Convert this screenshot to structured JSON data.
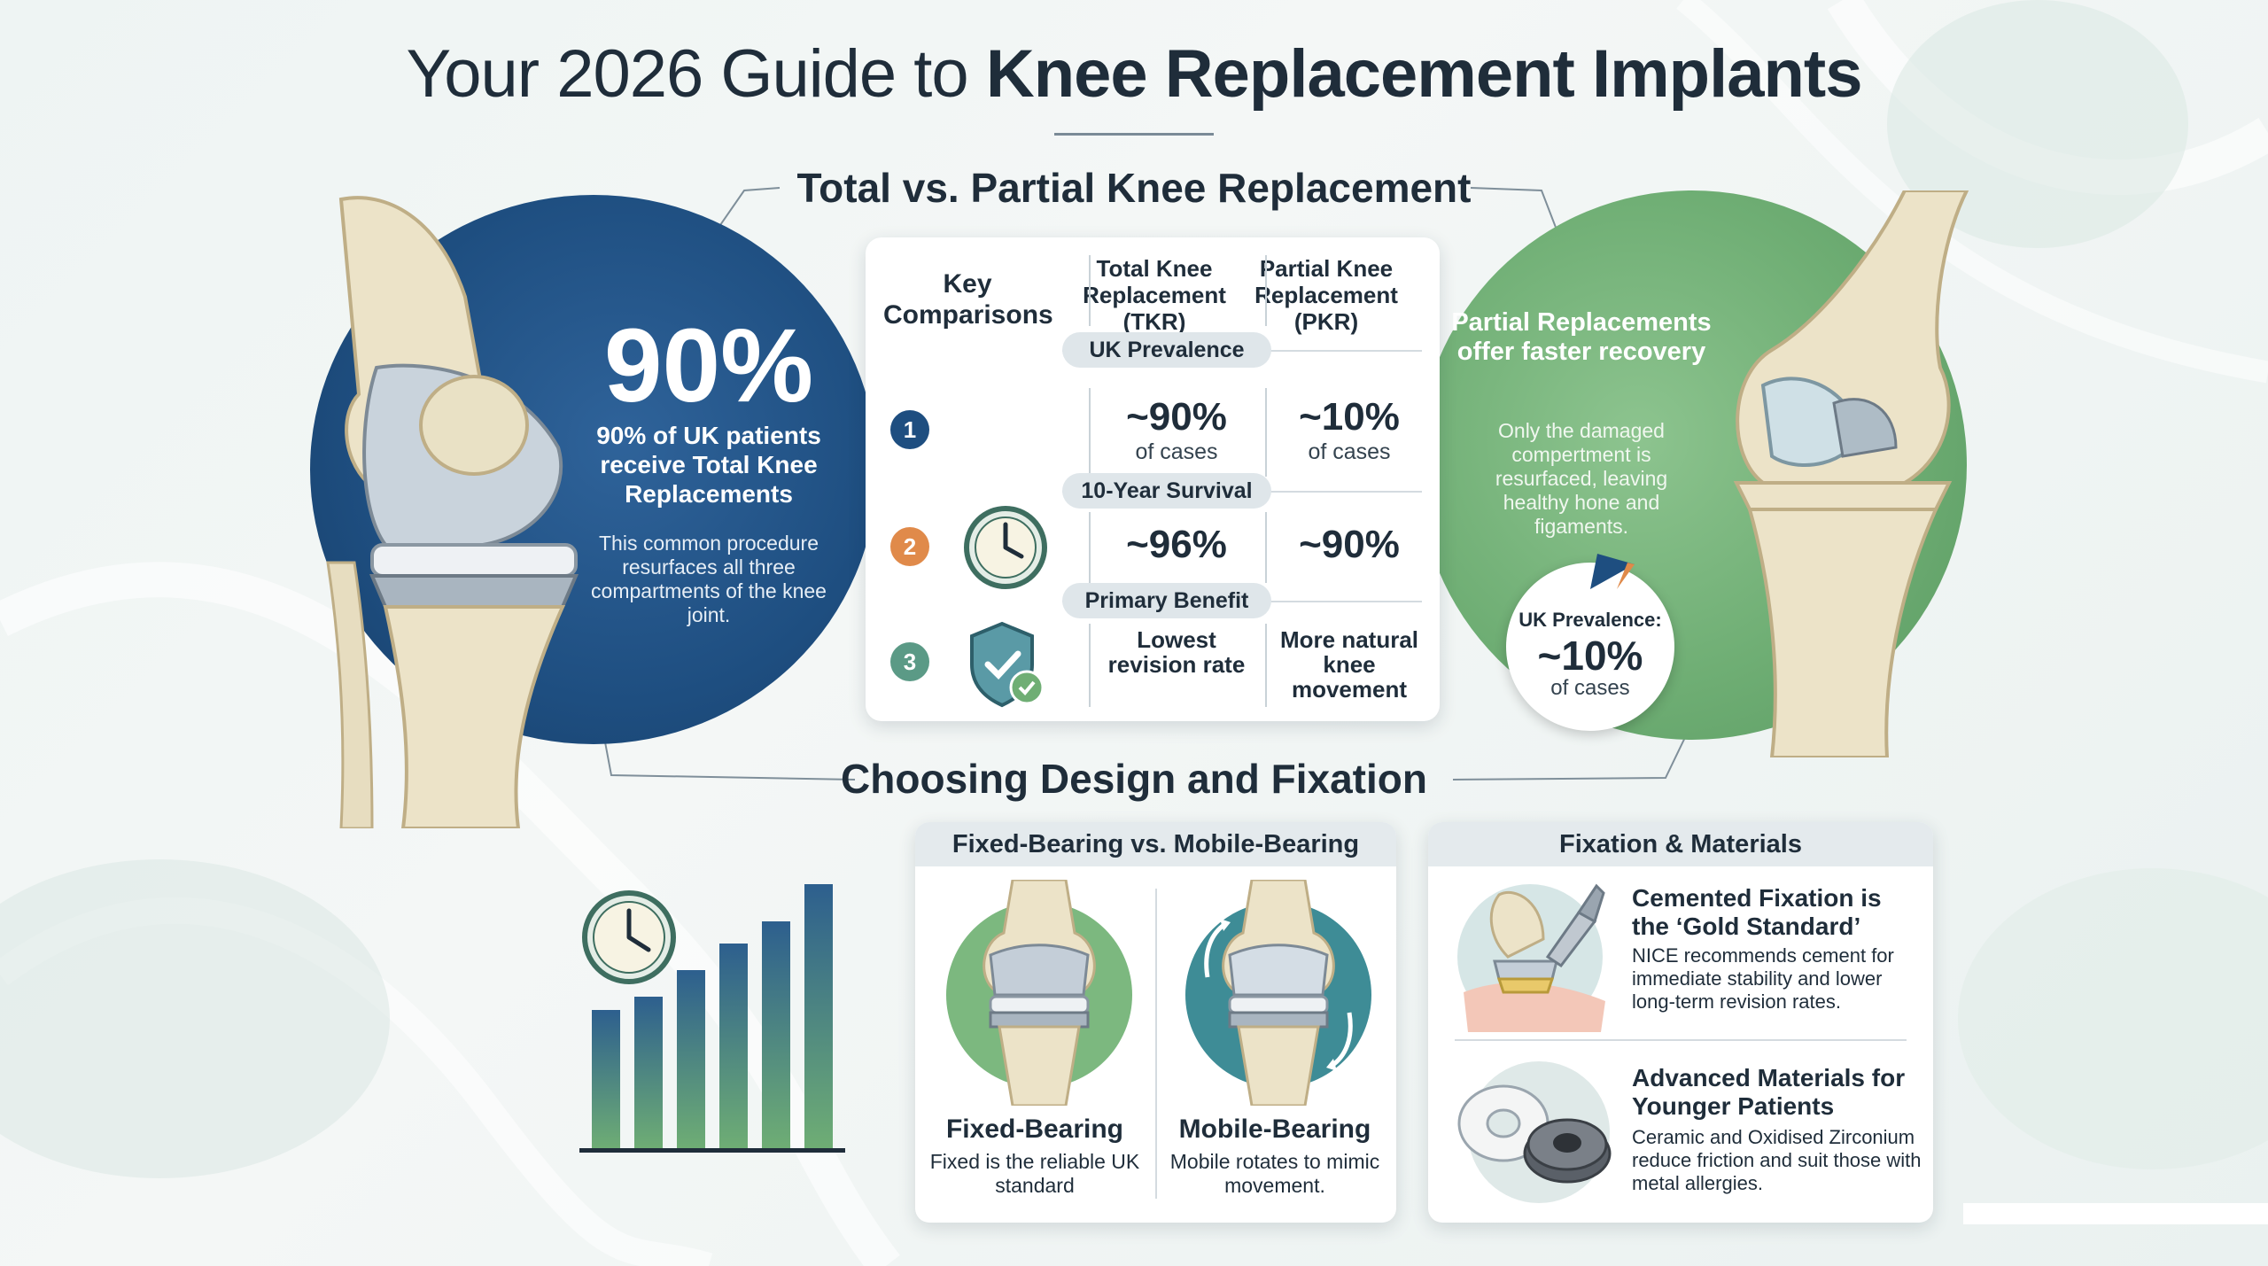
{
  "title": {
    "normal": "Your 2026 Guide to ",
    "bold": "Knee Replacement Implants"
  },
  "headings": {
    "comparison": "Total vs. Partial Knee Replacement",
    "design": "Choosing Design and Fixation"
  },
  "total_panel": {
    "stat": "90%",
    "lead": "90% of UK patients receive Total Knee Replacements",
    "sub": "This common procedure resurfaces all three compartments of the knee joint."
  },
  "partial_panel": {
    "lead": "Partial Replacements offer faster recovery",
    "sub": "Only the damaged compertment is resurfaced, leaving healthy hone and figaments.",
    "badge_label": "UK Prevalence:",
    "badge_value": "~10%",
    "badge_unit": "of cases"
  },
  "comparison": {
    "key_header": "Key Comparisons",
    "tkr_header": "Total Knee Replacement (TKR)",
    "pkr_header": "Partial Knee Replacement (PKR)",
    "rows": [
      {
        "number": "1",
        "label": "UK Prevalence",
        "tkr_value": "~90%",
        "tkr_unit": "of cases",
        "pkr_value": "~10%",
        "pkr_unit": "of cases",
        "color": "#1e4e80"
      },
      {
        "number": "2",
        "label": "10-Year Survival",
        "tkr_value": "~96%",
        "pkr_value": "~90%",
        "color": "#e08a4a"
      },
      {
        "number": "3",
        "label": "Primary Benefit",
        "tkr_value": "Lowest revision rate",
        "pkr_value": "More natural knee movement",
        "color": "#5b9a86"
      }
    ]
  },
  "design_card": {
    "header": "Fixed-Bearing vs. Mobile-Bearing",
    "fixed_title": "Fixed-Bearing",
    "fixed_sub": "Fixed is the reliable UK standard",
    "mobile_title": "Mobile-Bearing",
    "mobile_sub": "Mobile rotates to mimic movement."
  },
  "fixation_card": {
    "header": "Fixation & Materials",
    "cement_title": "Cemented Fixation is the ‘Gold Standard’",
    "cement_sub": "NICE recommends cement for immediate stability and lower long-term revision rates.",
    "materials_title": "Advanced Materials for Younger Patients",
    "materials_sub": "Ceramic and Oxidised Zirconium reduce friction and suit those with metal allergies."
  },
  "colors": {
    "blue": "#1e4e80",
    "green": "#6fae74",
    "orange": "#e08a4a",
    "teal": "#5b9a86"
  },
  "icons": [
    "clock-icon",
    "shield-check-icon",
    "bar-chart-icon",
    "knee-joint-illustration",
    "rotate-arrows-icon",
    "surgical-tool-icon",
    "implant-washer-icon"
  ]
}
